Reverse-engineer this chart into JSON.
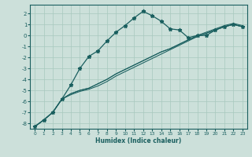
{
  "xlabel": "Humidex (Indice chaleur)",
  "xlim": [
    -0.5,
    23.5
  ],
  "ylim": [
    -8.5,
    2.8
  ],
  "xticks": [
    0,
    1,
    2,
    3,
    4,
    5,
    6,
    7,
    8,
    9,
    10,
    11,
    12,
    13,
    14,
    15,
    16,
    17,
    18,
    19,
    20,
    21,
    22,
    23
  ],
  "yticks": [
    2,
    1,
    0,
    -1,
    -2,
    -3,
    -4,
    -5,
    -6,
    -7,
    -8
  ],
  "background_color": "#cce0da",
  "grid_color": "#a8c8be",
  "line_color": "#1a5f5f",
  "main_x": [
    0,
    1,
    2,
    3,
    4,
    5,
    6,
    7,
    8,
    9,
    10,
    11,
    12,
    13,
    14,
    15,
    16,
    17,
    18,
    19,
    20,
    21,
    22,
    23
  ],
  "main_y": [
    -8.3,
    -7.7,
    -7.0,
    -5.8,
    -4.5,
    -3.0,
    -1.9,
    -1.4,
    -0.5,
    0.3,
    0.9,
    1.6,
    2.2,
    1.8,
    1.3,
    0.6,
    0.5,
    -0.2,
    0.0,
    0.0,
    0.5,
    0.8,
    1.0,
    0.8
  ],
  "linear_lines": [
    [
      -8.3,
      -7.7,
      -7.0,
      -5.8,
      -5.3,
      -5.0,
      -4.8,
      -4.4,
      -4.0,
      -3.5,
      -3.1,
      -2.7,
      -2.3,
      -1.9,
      -1.5,
      -1.2,
      -0.8,
      -0.4,
      -0.1,
      0.2,
      0.5,
      0.8,
      1.0,
      0.8
    ],
    [
      -8.3,
      -7.7,
      -7.0,
      -5.8,
      -5.3,
      -5.0,
      -4.8,
      -4.4,
      -4.0,
      -3.5,
      -3.1,
      -2.7,
      -2.3,
      -1.9,
      -1.5,
      -1.2,
      -0.8,
      -0.4,
      0.0,
      0.3,
      0.6,
      0.9,
      1.1,
      0.9
    ],
    [
      -8.3,
      -7.7,
      -7.0,
      -5.8,
      -5.4,
      -5.1,
      -4.9,
      -4.6,
      -4.2,
      -3.7,
      -3.3,
      -2.9,
      -2.5,
      -2.1,
      -1.7,
      -1.3,
      -0.9,
      -0.5,
      -0.1,
      0.2,
      0.5,
      0.8,
      1.0,
      0.8
    ]
  ]
}
